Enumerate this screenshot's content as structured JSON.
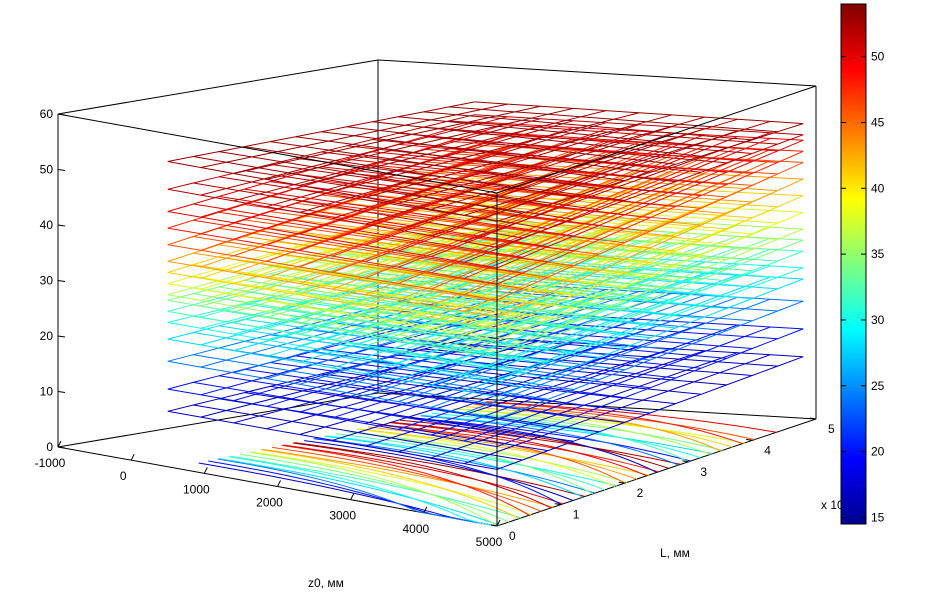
{
  "chart_data": {
    "type": "surface3d",
    "title": "",
    "xlabel": "z0, мм",
    "ylabel": "L, мм",
    "zlabel": "",
    "xlim": [
      -1000,
      5000
    ],
    "ylim": [
      0,
      5
    ],
    "zlim": [
      0,
      60
    ],
    "x_ticks": [
      "-1000",
      "0",
      "1000",
      "2000",
      "3000",
      "4000",
      "5000"
    ],
    "y_ticks": [
      "0",
      "1",
      "2",
      "3",
      "4",
      "5"
    ],
    "y_multiplier": "x 10",
    "z_ticks": [
      "0",
      "10",
      "20",
      "30",
      "40",
      "50",
      "60"
    ],
    "colorbar": {
      "min": 14.5,
      "max": 54,
      "ticks": [
        "15",
        "20",
        "25",
        "30",
        "35",
        "40",
        "45",
        "50"
      ]
    },
    "grid": false,
    "box": true,
    "series": [
      {
        "level": 17,
        "z_near": 10,
        "z_far": 12
      },
      {
        "level": 20,
        "z_near": 14,
        "z_far": 17
      },
      {
        "level": 24,
        "z_near": 19,
        "z_far": 22
      },
      {
        "level": 28,
        "z_near": 23,
        "z_far": 26
      },
      {
        "level": 30,
        "z_near": 26,
        "z_far": 28
      },
      {
        "level": 32,
        "z_near": 28,
        "z_far": 31
      },
      {
        "level": 34,
        "z_near": 30,
        "z_far": 33
      },
      {
        "level": 36,
        "z_near": 31,
        "z_far": 35
      },
      {
        "level": 38,
        "z_near": 33,
        "z_far": 38
      },
      {
        "level": 41,
        "z_near": 35,
        "z_far": 41
      },
      {
        "level": 43,
        "z_near": 37,
        "z_far": 44
      },
      {
        "level": 46,
        "z_near": 40,
        "z_far": 47
      },
      {
        "level": 48,
        "z_near": 43,
        "z_far": 49
      },
      {
        "level": 50,
        "z_near": 46,
        "z_far": 51
      },
      {
        "level": 52,
        "z_near": 50,
        "z_far": 52
      },
      {
        "level": 53,
        "z_near": 55,
        "z_far": 54
      }
    ]
  }
}
